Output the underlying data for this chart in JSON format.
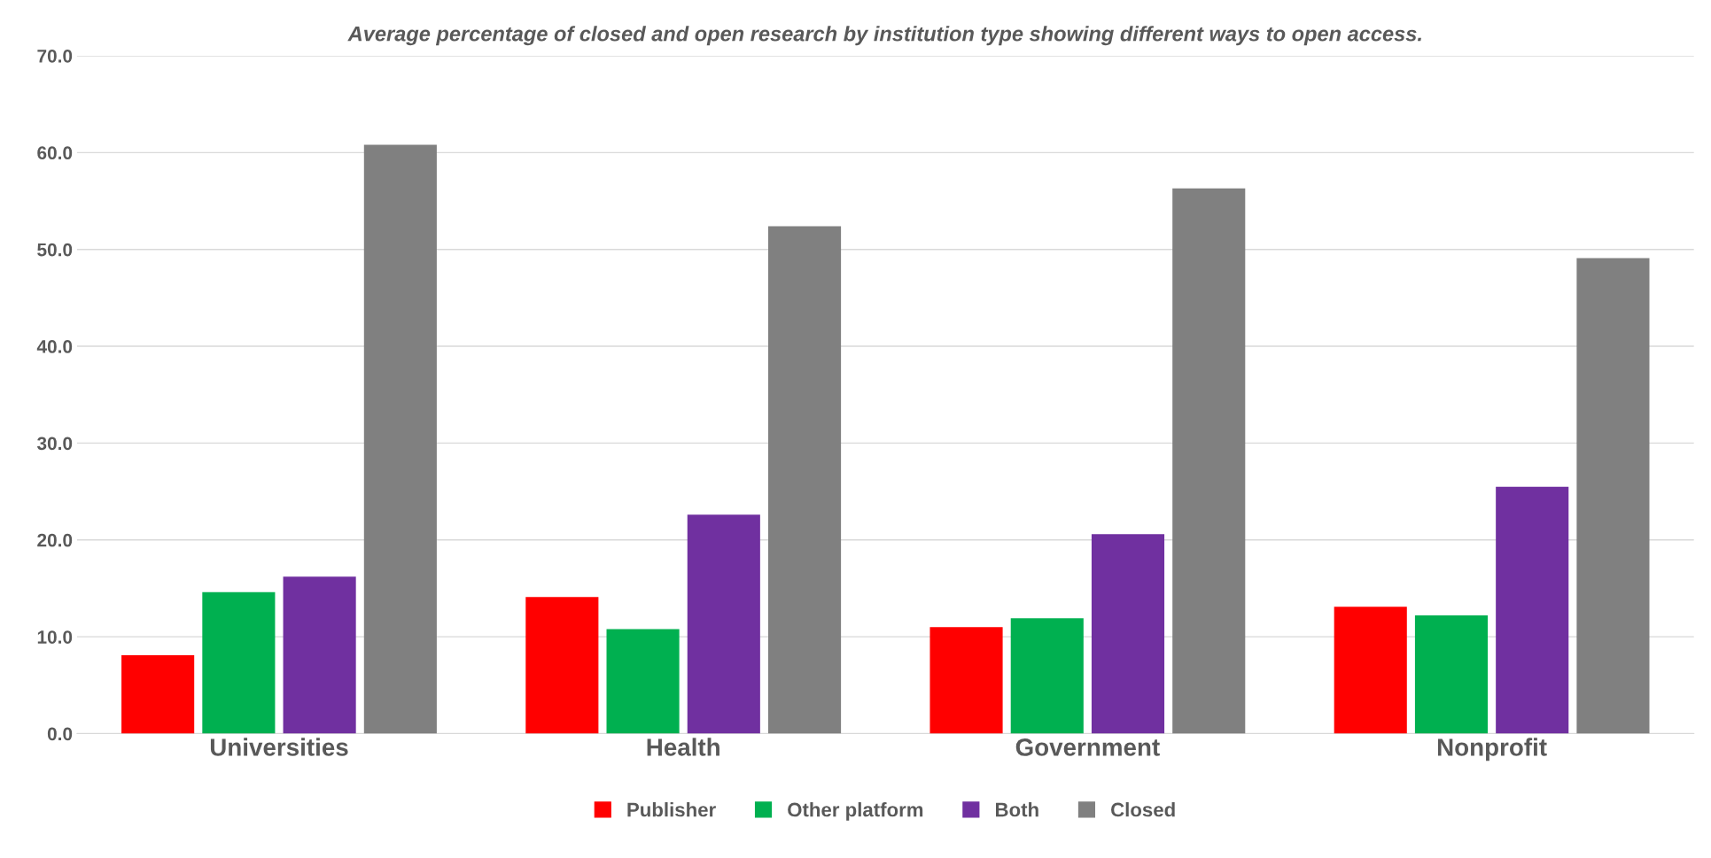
{
  "chart_data": {
    "type": "bar",
    "title": "Average percentage of closed and open research by institution type showing different ways to open access.",
    "categories": [
      "Universities",
      "Health",
      "Government",
      "Nonprofit"
    ],
    "series": [
      {
        "name": "Publisher",
        "color": "#ff0000",
        "values": [
          8.1,
          14.1,
          11.0,
          13.1
        ]
      },
      {
        "name": "Other platform",
        "color": "#00b050",
        "values": [
          14.6,
          10.8,
          11.9,
          12.2
        ]
      },
      {
        "name": "Both",
        "color": "#7030a0",
        "values": [
          16.2,
          22.6,
          20.6,
          25.5
        ]
      },
      {
        "name": "Closed",
        "color": "#808080",
        "values": [
          60.8,
          52.4,
          56.3,
          49.1
        ]
      }
    ],
    "ylim": [
      0,
      70
    ],
    "yticks": [
      {
        "value": 0,
        "label": "0.0"
      },
      {
        "value": 10,
        "label": "10.0"
      },
      {
        "value": 20,
        "label": "20.0"
      },
      {
        "value": 30,
        "label": "30.0"
      },
      {
        "value": 40,
        "label": "40.0"
      },
      {
        "value": 50,
        "label": "50.0"
      },
      {
        "value": 60,
        "label": "60.0"
      },
      {
        "value": 70,
        "label": "70.0"
      }
    ],
    "grid": "y",
    "legend": "bottom"
  }
}
